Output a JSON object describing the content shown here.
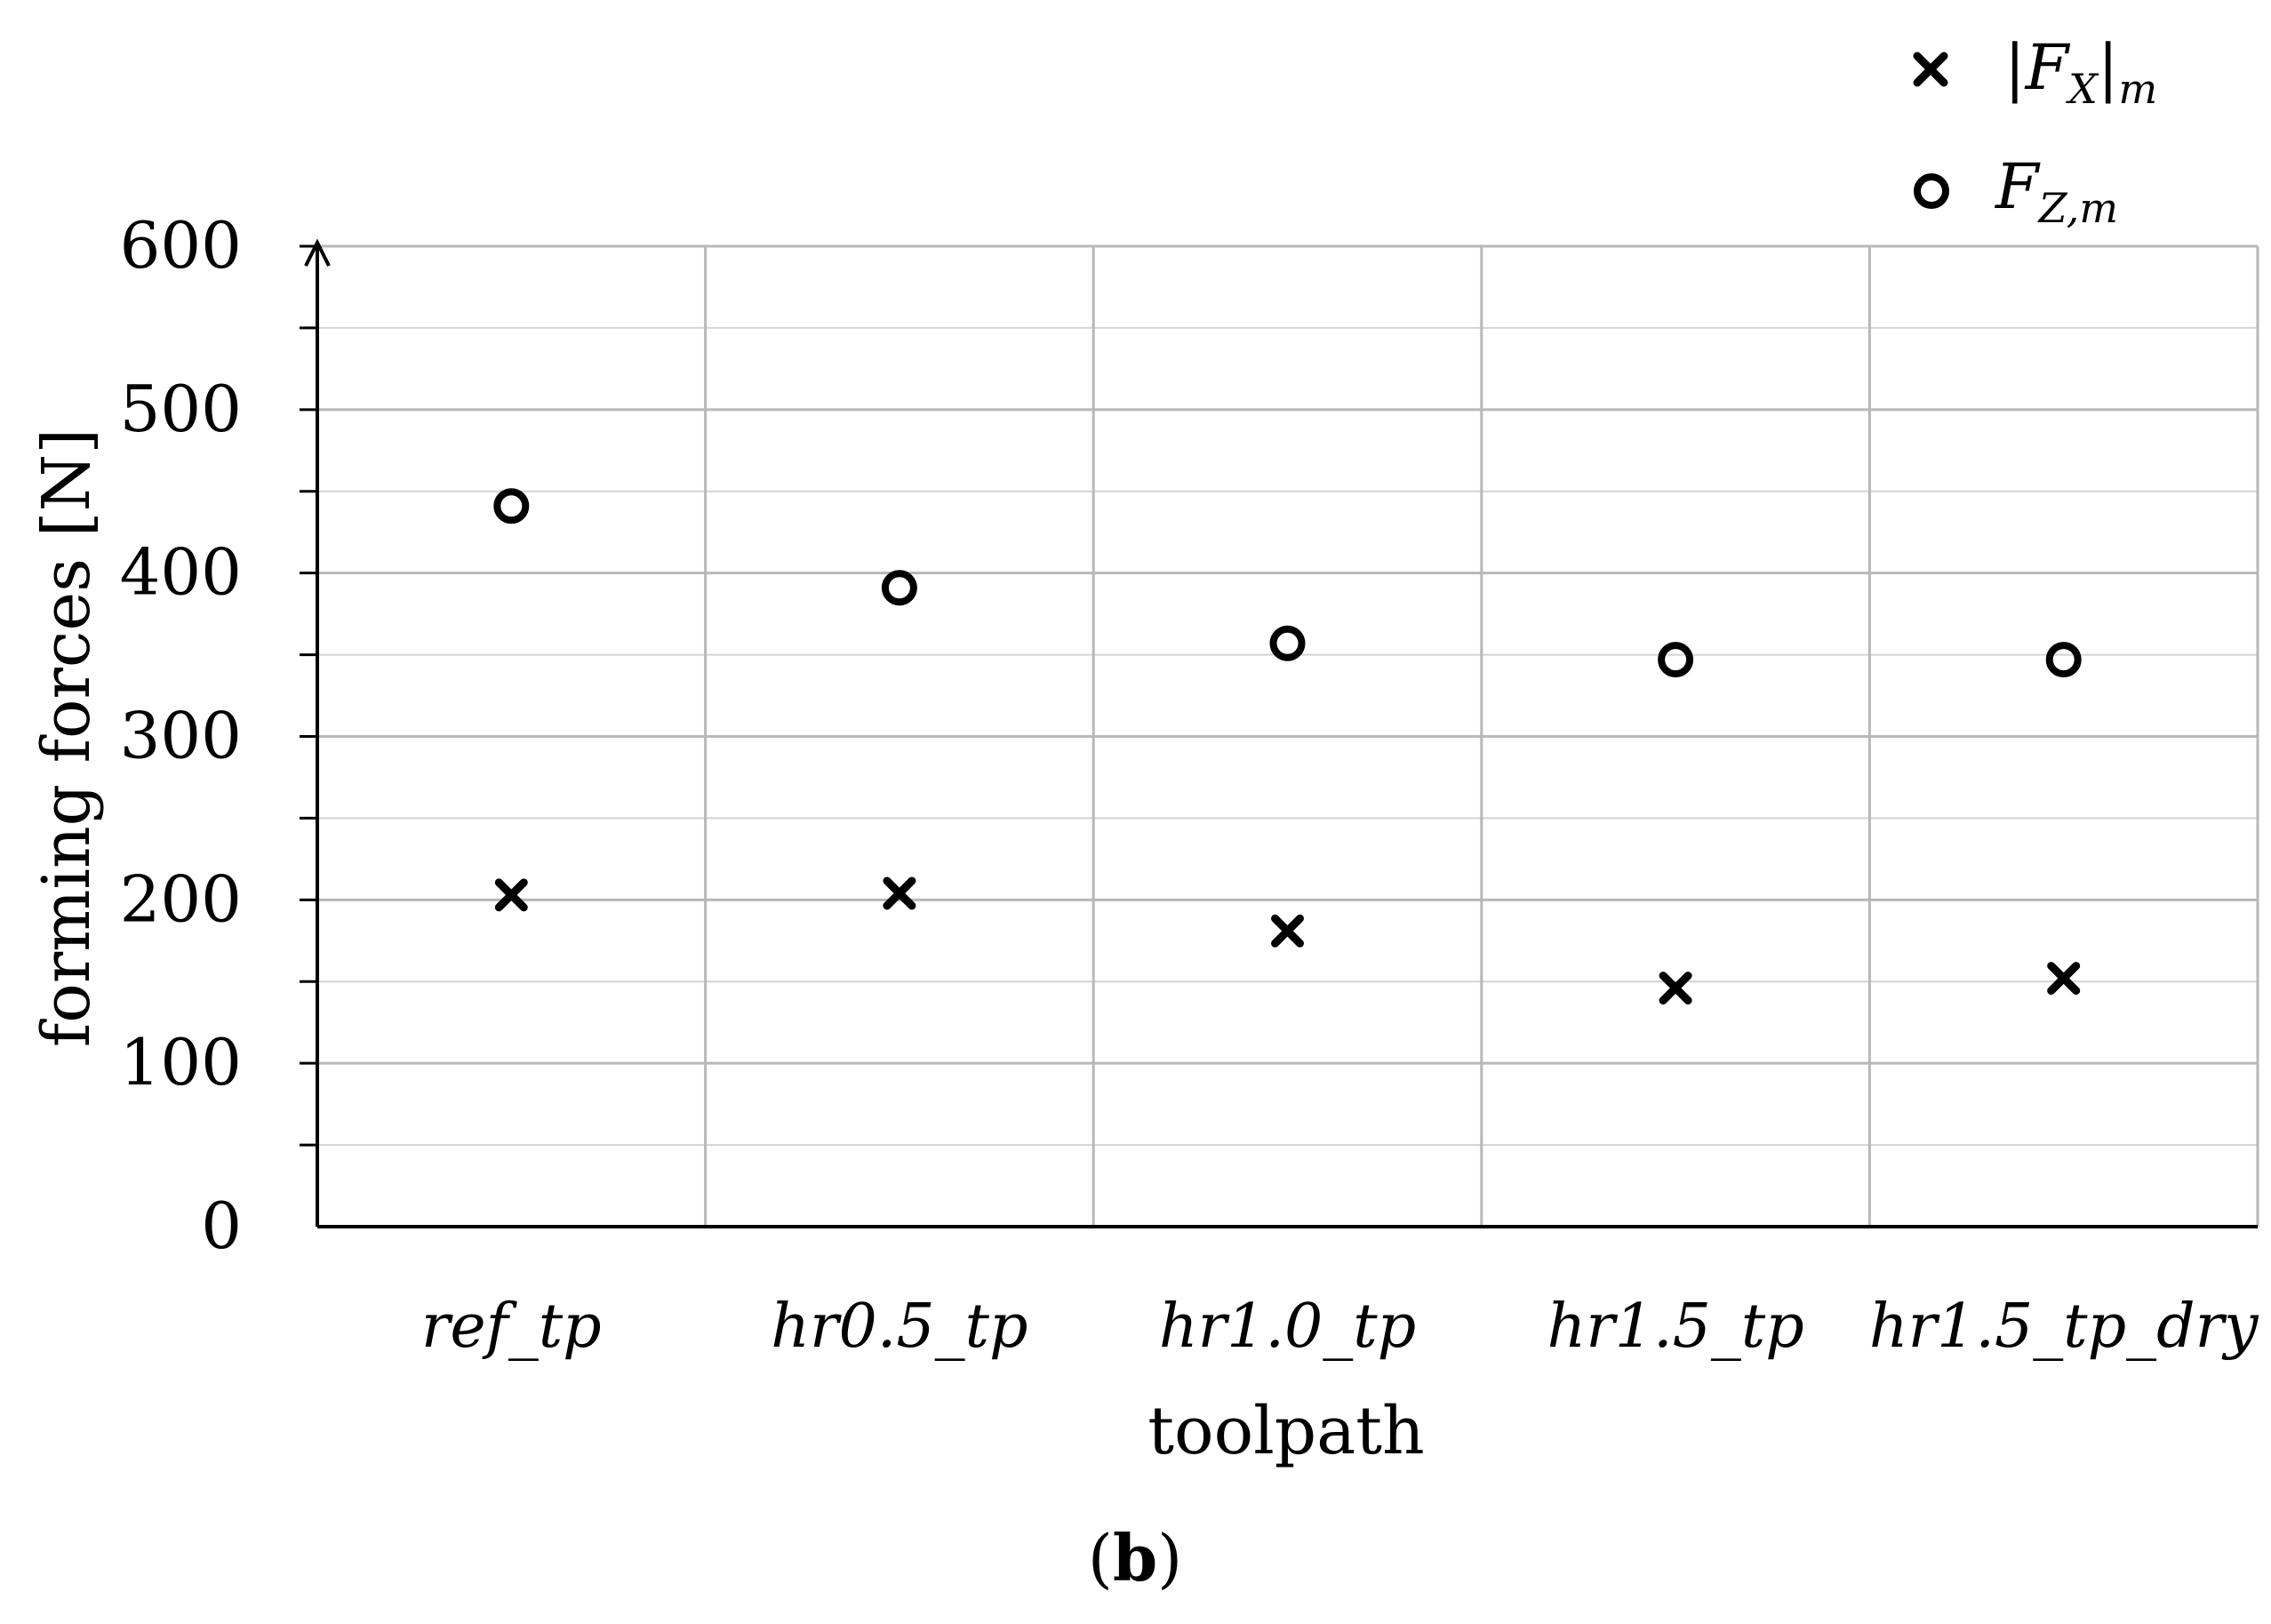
{
  "chart_data": {
    "type": "scatter",
    "categories": [
      "ref_tp",
      "hr0.5_tp",
      "hr1.0_tp",
      "hr1.5_tp",
      "hr1.5_tp_dry"
    ],
    "series": [
      {
        "name_main": "|F",
        "name_sub": "X",
        "name_tail": "|",
        "name_sub2": "m",
        "marker": "x",
        "values": [
          203,
          204,
          181,
          146,
          152
        ]
      },
      {
        "name_main": "F",
        "name_sub": "Z,m",
        "name_tail": "",
        "name_sub2": "",
        "marker": "o",
        "values": [
          441,
          391,
          357,
          347,
          347
        ]
      }
    ],
    "xlabel": "toolpath",
    "ylabel": "forming forces [N]",
    "ylim": [
      0,
      600
    ],
    "yticks": [
      0,
      100,
      200,
      300,
      400,
      500,
      600
    ],
    "minor_step": 50,
    "grid": true,
    "legend_position": "top-right",
    "panel_label_open": "(",
    "panel_label": "b",
    "panel_label_close": ")"
  }
}
